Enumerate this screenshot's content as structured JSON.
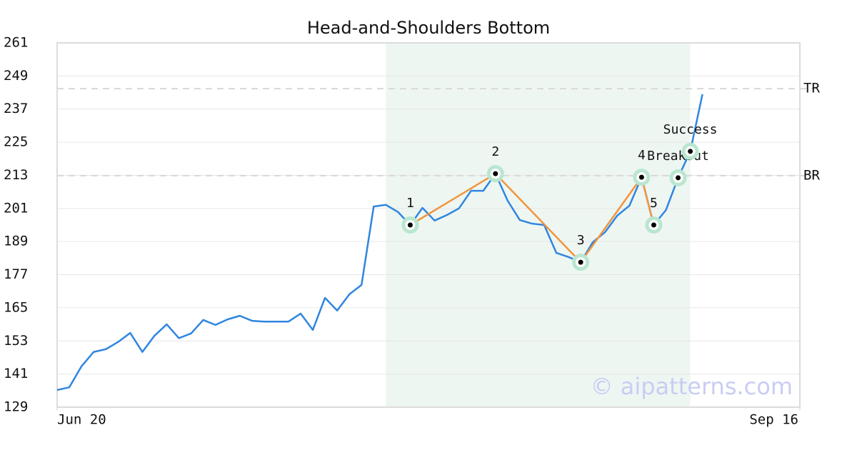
{
  "chart_data": {
    "type": "line",
    "title": "Head-and-Shoulders Bottom",
    "x": [
      0,
      1,
      2,
      3,
      4,
      5,
      6,
      7,
      8,
      9,
      10,
      11,
      12,
      13,
      14,
      15,
      16,
      17,
      18,
      19,
      20,
      21,
      22,
      23,
      24,
      25,
      26,
      27,
      28,
      29,
      30,
      31,
      32,
      33,
      34,
      35,
      36,
      37,
      38,
      39,
      40,
      41,
      42,
      43,
      44,
      45,
      46,
      47,
      48,
      49,
      50,
      51,
      52,
      53
    ],
    "xlim": [
      0,
      61
    ],
    "xticks": [
      {
        "value": 0,
        "label": "Jun 20"
      },
      {
        "value": 61,
        "label": "Sep 16"
      }
    ],
    "ylim": [
      129,
      261
    ],
    "yticks": [
      129,
      141,
      153,
      165,
      177,
      189,
      201,
      213,
      225,
      237,
      249,
      261
    ],
    "grid": true,
    "series": [
      {
        "color": "#2f86e0",
        "values": [
          135.2,
          136.2,
          143.8,
          149,
          150,
          152.6,
          155.9,
          149,
          154.9,
          159,
          154,
          155.7,
          160.6,
          158.8,
          160.8,
          162.1,
          160.3,
          160,
          160,
          160,
          162.9,
          157,
          168.6,
          164,
          169.9,
          173.3,
          201.7,
          202.3,
          199.7,
          195,
          201.2,
          196.6,
          198.6,
          201,
          207.4,
          207.4,
          213.6,
          203.8,
          196.8,
          195.5,
          195,
          184.9,
          183.4,
          181.5,
          188.8,
          192.4,
          198.4,
          202,
          212.3,
          195,
          200.4,
          212.1,
          221.7,
          242.4
        ]
      }
    ],
    "pattern": {
      "color": "#f0953f",
      "x": [
        29,
        36,
        43,
        48,
        49
      ],
      "values": [
        195,
        213.6,
        181.5,
        212.3,
        195
      ],
      "labels": [
        "1",
        "2",
        "3",
        "4",
        "5"
      ]
    },
    "signals": [
      {
        "label": "Breakout",
        "x": 51,
        "value": 212.1
      },
      {
        "label": "Success",
        "x": 52,
        "value": 221.7
      }
    ],
    "levels": [
      {
        "label": "TR",
        "value": 244.4
      },
      {
        "label": "BR",
        "value": 212.9
      }
    ],
    "highlight": {
      "xlim": [
        27,
        52
      ],
      "color": "#eef6f2"
    },
    "watermark": "© aipatterns.com"
  }
}
